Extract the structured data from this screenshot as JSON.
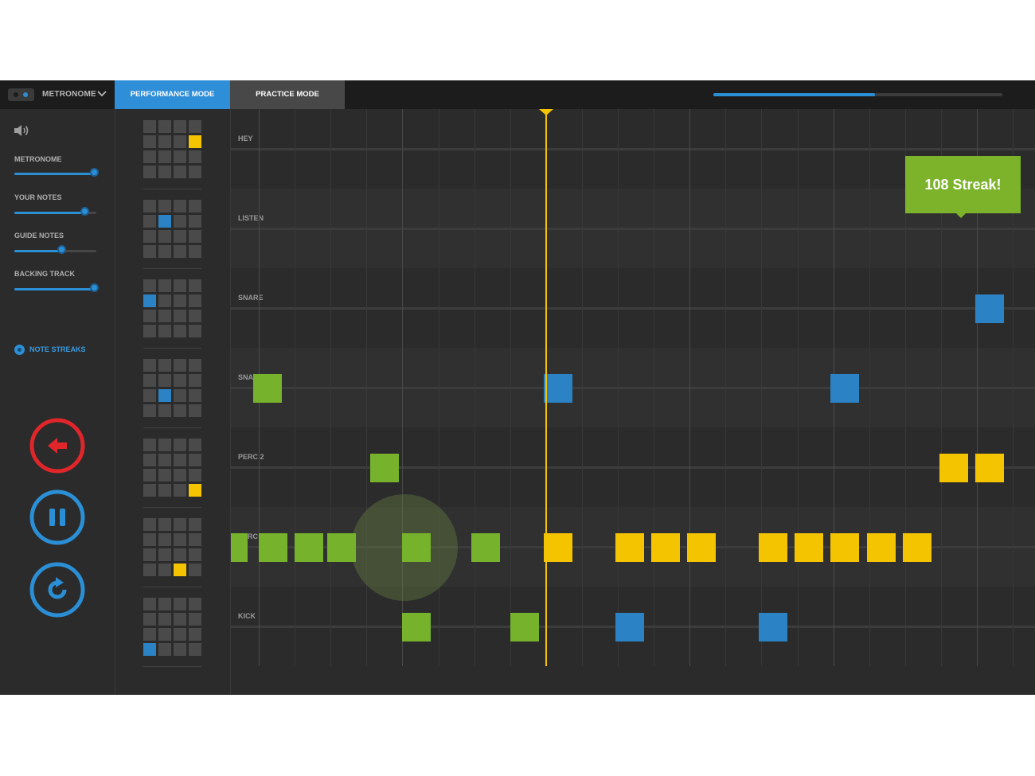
{
  "topbar": {
    "metronome_label": "METRONOME",
    "tabs": [
      {
        "label": "PERFORMANCE MODE",
        "active": true
      },
      {
        "label": "PRACTICE MODE",
        "active": false
      }
    ],
    "song_progress": 0.56
  },
  "sidebar": {
    "volume_icon": "speaker-icon",
    "sliders": [
      {
        "label": "METRONOME",
        "value": 0.98
      },
      {
        "label": "YOUR NOTES",
        "value": 0.86
      },
      {
        "label": "GUIDE NOTES",
        "value": 0.58
      },
      {
        "label": "BACKING TRACK",
        "value": 0.98
      }
    ],
    "note_streaks": {
      "label": "NOTE STREAKS",
      "enabled": true
    },
    "controls": [
      {
        "name": "back-button",
        "icon": "arrow-left-icon",
        "color": "#e0262a"
      },
      {
        "name": "pause-button",
        "icon": "pause-icon",
        "color": "#2b8fd6"
      },
      {
        "name": "restart-button",
        "icon": "restart-icon",
        "color": "#2b8fd6"
      }
    ]
  },
  "pads": [
    {
      "row": 1,
      "col": 3,
      "color": "yellow"
    },
    {
      "row": 1,
      "col": 1,
      "color": "blue"
    },
    {
      "row": 1,
      "col": 0,
      "color": "blue"
    },
    {
      "row": 2,
      "col": 1,
      "color": "blue"
    },
    {
      "row": 3,
      "col": 3,
      "color": "yellow"
    },
    {
      "row": 3,
      "col": 2,
      "color": "yellow"
    },
    {
      "row": 3,
      "col": 0,
      "color": "blue"
    }
  ],
  "lanes": [
    "HEY",
    "LISTEN",
    "SNARE",
    "SNAP",
    "PERC 2",
    "PERC 1",
    "KICK"
  ],
  "colors": {
    "green": "#76b22b",
    "blue": "#2b82c4",
    "yellow": "#f5c400",
    "accent": "#2b8fd6",
    "red": "#e0262a"
  },
  "notes": [
    {
      "lane": 2,
      "step": 20.35,
      "color": "blue"
    },
    {
      "lane": 3,
      "step": 0.25,
      "color": "green"
    },
    {
      "lane": 3,
      "step": 8.33,
      "color": "blue"
    },
    {
      "lane": 3,
      "step": 16.33,
      "color": "blue"
    },
    {
      "lane": 4,
      "step": 3.5,
      "color": "green"
    },
    {
      "lane": 4,
      "step": 19.35,
      "color": "yellow"
    },
    {
      "lane": 4,
      "step": 20.35,
      "color": "yellow"
    },
    {
      "lane": 5,
      "step": -0.7,
      "color": "green"
    },
    {
      "lane": 5,
      "step": 0.4,
      "color": "green"
    },
    {
      "lane": 5,
      "step": 1.4,
      "color": "green"
    },
    {
      "lane": 5,
      "step": 2.3,
      "color": "green"
    },
    {
      "lane": 5,
      "step": 4.4,
      "color": "green"
    },
    {
      "lane": 5,
      "step": 6.33,
      "color": "green"
    },
    {
      "lane": 5,
      "step": 8.33,
      "color": "yellow"
    },
    {
      "lane": 5,
      "step": 10.33,
      "color": "yellow"
    },
    {
      "lane": 5,
      "step": 11.33,
      "color": "yellow"
    },
    {
      "lane": 5,
      "step": 12.33,
      "color": "yellow"
    },
    {
      "lane": 5,
      "step": 14.33,
      "color": "yellow"
    },
    {
      "lane": 5,
      "step": 15.33,
      "color": "yellow"
    },
    {
      "lane": 5,
      "step": 16.33,
      "color": "yellow"
    },
    {
      "lane": 5,
      "step": 17.33,
      "color": "yellow"
    },
    {
      "lane": 5,
      "step": 18.33,
      "color": "yellow"
    },
    {
      "lane": 6,
      "step": 4.4,
      "color": "green"
    },
    {
      "lane": 6,
      "step": 7.4,
      "color": "green"
    },
    {
      "lane": 6,
      "step": 10.33,
      "color": "blue"
    },
    {
      "lane": 6,
      "step": 14.33,
      "color": "blue"
    }
  ],
  "playhead_step": 8,
  "streak_message": "108 Streak!"
}
